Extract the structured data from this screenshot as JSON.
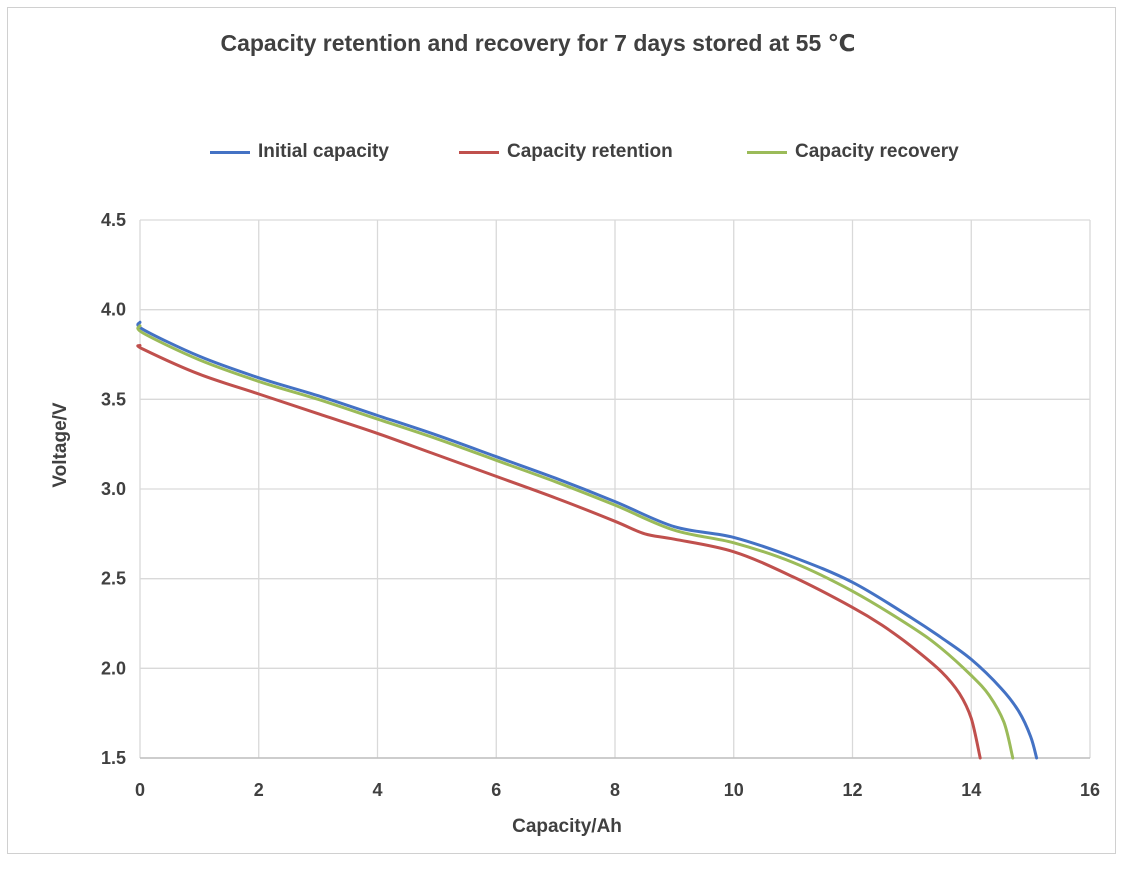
{
  "chart_data": {
    "type": "line",
    "title": "Capacity retention and recovery for 7 days stored at 55 ℃",
    "xlabel": "Capacity/Ah",
    "ylabel": "Voltage/V",
    "xlim": [
      0,
      16
    ],
    "ylim": [
      1.5,
      4.5
    ],
    "xticks": [
      "0",
      "2",
      "4",
      "6",
      "8",
      "10",
      "12",
      "14",
      "16"
    ],
    "yticks": [
      "1.5",
      "2.0",
      "2.5",
      "3.0",
      "3.5",
      "4.0",
      "4.5"
    ],
    "grid": true,
    "legend_position": "top",
    "series": [
      {
        "name": "Initial capacity",
        "color": "#4472c4",
        "points": [
          [
            0,
            3.93
          ],
          [
            0.05,
            3.89
          ],
          [
            1,
            3.74
          ],
          [
            2,
            3.62
          ],
          [
            3,
            3.52
          ],
          [
            4,
            3.41
          ],
          [
            5,
            3.3
          ],
          [
            6,
            3.18
          ],
          [
            7,
            3.06
          ],
          [
            8,
            2.93
          ],
          [
            9,
            2.79
          ],
          [
            10,
            2.73
          ],
          [
            11,
            2.62
          ],
          [
            12,
            2.48
          ],
          [
            13,
            2.28
          ],
          [
            13.5,
            2.17
          ],
          [
            14,
            2.05
          ],
          [
            14.5,
            1.89
          ],
          [
            14.8,
            1.76
          ],
          [
            15,
            1.62
          ],
          [
            15.1,
            1.5
          ]
        ]
      },
      {
        "name": "Capacity retention",
        "color": "#c0504d",
        "points": [
          [
            0,
            3.8
          ],
          [
            0.05,
            3.78
          ],
          [
            1,
            3.64
          ],
          [
            2,
            3.53
          ],
          [
            3,
            3.42
          ],
          [
            4,
            3.31
          ],
          [
            5,
            3.19
          ],
          [
            6,
            3.07
          ],
          [
            7,
            2.95
          ],
          [
            8,
            2.82
          ],
          [
            8.5,
            2.75
          ],
          [
            9,
            2.72
          ],
          [
            10,
            2.65
          ],
          [
            11,
            2.51
          ],
          [
            12,
            2.34
          ],
          [
            12.5,
            2.24
          ],
          [
            13,
            2.12
          ],
          [
            13.5,
            1.98
          ],
          [
            13.8,
            1.86
          ],
          [
            14,
            1.72
          ],
          [
            14.15,
            1.5
          ]
        ]
      },
      {
        "name": "Capacity recovery",
        "color": "#9bbb59",
        "points": [
          [
            0,
            3.91
          ],
          [
            0.05,
            3.87
          ],
          [
            1,
            3.72
          ],
          [
            2,
            3.6
          ],
          [
            3,
            3.5
          ],
          [
            4,
            3.39
          ],
          [
            5,
            3.28
          ],
          [
            6,
            3.16
          ],
          [
            7,
            3.04
          ],
          [
            8,
            2.91
          ],
          [
            9,
            2.77
          ],
          [
            10,
            2.7
          ],
          [
            11,
            2.59
          ],
          [
            12,
            2.43
          ],
          [
            13,
            2.23
          ],
          [
            13.5,
            2.11
          ],
          [
            14,
            1.96
          ],
          [
            14.3,
            1.85
          ],
          [
            14.55,
            1.7
          ],
          [
            14.7,
            1.5
          ]
        ]
      }
    ]
  }
}
